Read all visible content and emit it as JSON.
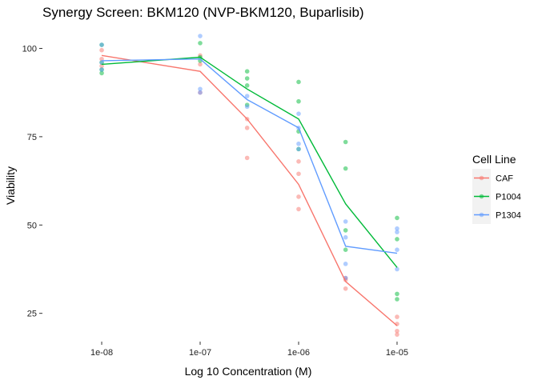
{
  "chart_data": {
    "type": "line",
    "title": "Synergy Screen: BKM120 (NVP-BKM120, Buparlisib)",
    "xlabel": "Log 10 Concentration (M)",
    "ylabel": "Viability",
    "x_scale": "log10",
    "x": [
      1e-08,
      1e-07,
      3e-07,
      1e-06,
      3e-06,
      1e-05
    ],
    "x_ticks": [
      1e-08,
      1e-07,
      1e-06,
      1e-05
    ],
    "x_tick_labels": [
      "1e-08",
      "1e-07",
      "1e-06",
      "1e-05"
    ],
    "y_ticks": [
      25,
      50,
      75,
      100
    ],
    "y_tick_labels": [
      "25",
      "50",
      "75",
      "100"
    ],
    "ylim": [
      17,
      106
    ],
    "legend": {
      "title": "Cell Line",
      "position": "right"
    },
    "series": [
      {
        "name": "CAF",
        "color": "#F8766D",
        "values": [
          98,
          93.5,
          80,
          61.5,
          34,
          21.5
        ],
        "points": [
          [
            1e-08,
            99.5
          ],
          [
            1e-08,
            97
          ],
          [
            1e-08,
            95
          ],
          [
            1e-07,
            98
          ],
          [
            1e-07,
            95.5
          ],
          [
            1e-07,
            87.5
          ],
          [
            3e-07,
            80
          ],
          [
            3e-07,
            77.5
          ],
          [
            3e-07,
            69
          ],
          [
            1e-06,
            68
          ],
          [
            1e-06,
            64.5
          ],
          [
            1e-06,
            58
          ],
          [
            1e-06,
            54.5
          ],
          [
            3e-06,
            35
          ],
          [
            3e-06,
            34.5
          ],
          [
            3e-06,
            32
          ],
          [
            1e-05,
            24
          ],
          [
            1e-05,
            22
          ],
          [
            1e-05,
            20
          ],
          [
            1e-05,
            19
          ]
        ]
      },
      {
        "name": "P1004",
        "color": "#00BA38",
        "values": [
          95.5,
          97.5,
          88.5,
          80,
          56,
          38
        ],
        "points": [
          [
            1e-08,
            101
          ],
          [
            1e-08,
            96
          ],
          [
            1e-08,
            94
          ],
          [
            1e-08,
            93
          ],
          [
            1e-07,
            101.5
          ],
          [
            1e-07,
            97.5
          ],
          [
            1e-07,
            96.5
          ],
          [
            3e-07,
            93.5
          ],
          [
            3e-07,
            91.5
          ],
          [
            3e-07,
            89.5
          ],
          [
            3e-07,
            84
          ],
          [
            1e-06,
            90.5
          ],
          [
            1e-06,
            85
          ],
          [
            1e-06,
            76.5
          ],
          [
            1e-06,
            71.5
          ],
          [
            3e-06,
            73.5
          ],
          [
            3e-06,
            66
          ],
          [
            3e-06,
            48.5
          ],
          [
            3e-06,
            43
          ],
          [
            1e-05,
            52
          ],
          [
            1e-05,
            46
          ],
          [
            1e-05,
            30.5
          ],
          [
            1e-05,
            29
          ]
        ]
      },
      {
        "name": "P1304",
        "color": "#619CFF",
        "values": [
          96.5,
          97,
          85.5,
          77.5,
          44,
          42
        ],
        "points": [
          [
            1e-08,
            101
          ],
          [
            1e-08,
            96
          ],
          [
            1e-08,
            94
          ],
          [
            1e-07,
            103.5
          ],
          [
            1e-07,
            88.5
          ],
          [
            1e-07,
            87.5
          ],
          [
            3e-07,
            86.5
          ],
          [
            3e-07,
            83.5
          ],
          [
            1e-06,
            81.5
          ],
          [
            1e-06,
            77.5
          ],
          [
            1e-06,
            73
          ],
          [
            1e-06,
            71.5
          ],
          [
            3e-06,
            51
          ],
          [
            3e-06,
            46.5
          ],
          [
            3e-06,
            39
          ],
          [
            3e-06,
            35
          ],
          [
            1e-05,
            49
          ],
          [
            1e-05,
            48
          ],
          [
            1e-05,
            43
          ],
          [
            1e-05,
            37.5
          ]
        ]
      }
    ]
  }
}
